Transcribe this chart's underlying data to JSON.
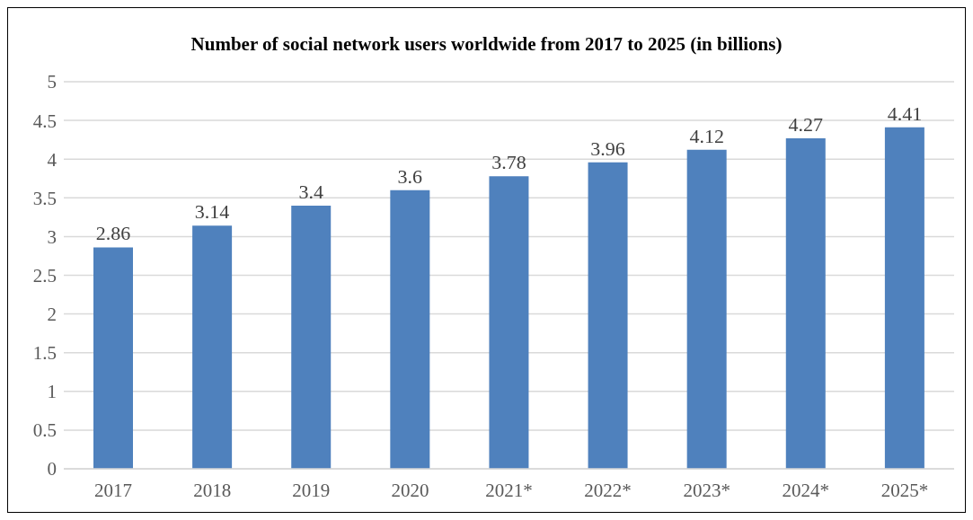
{
  "chart_data": {
    "type": "bar",
    "title": "Number of social network users worldwide from 2017 to 2025 (in billions)",
    "categories": [
      "2017",
      "2018",
      "2019",
      "2020",
      "2021*",
      "2022*",
      "2023*",
      "2024*",
      "2025*"
    ],
    "values": [
      2.86,
      3.14,
      3.4,
      3.6,
      3.78,
      3.96,
      4.12,
      4.27,
      4.41
    ],
    "color": "#4f81bd",
    "ylim": [
      0,
      5
    ],
    "yticks": [
      0,
      0.5,
      1,
      1.5,
      2,
      2.5,
      3,
      3.5,
      4,
      4.5,
      5
    ],
    "grid": "y",
    "data_labels": true
  }
}
